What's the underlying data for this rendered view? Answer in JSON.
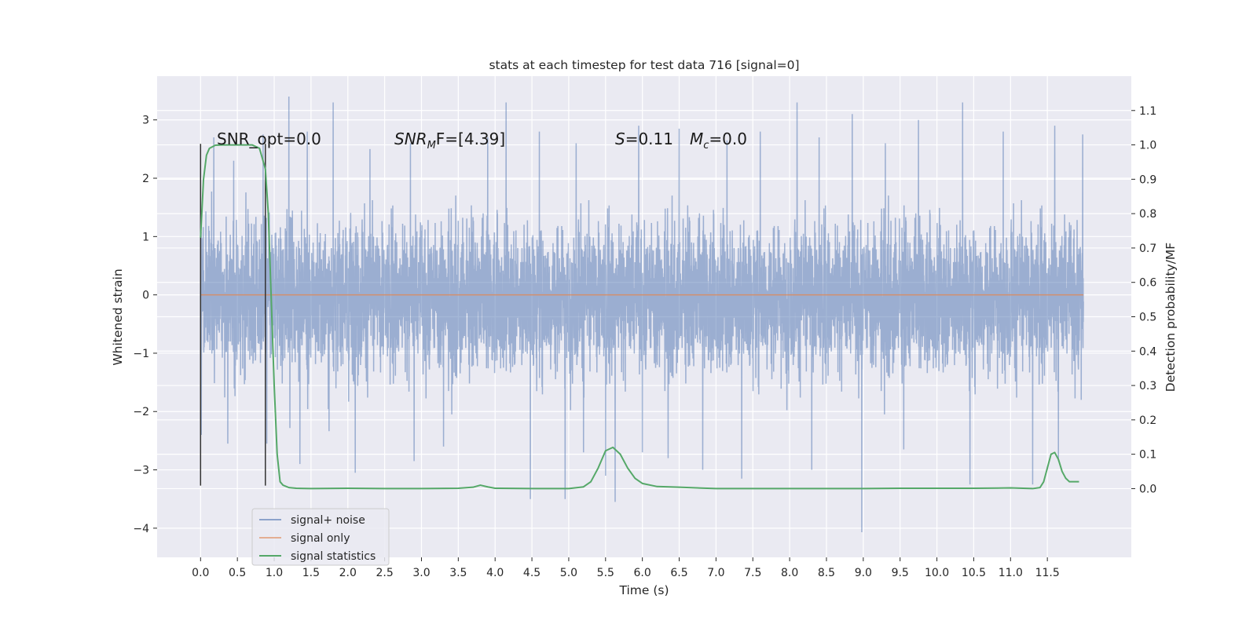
{
  "chart_data": {
    "type": "line",
    "title": "stats at each timestep for test data 716 [signal=0]",
    "xlabel": "Time (s)",
    "ylabel_left": "Whitened strain",
    "ylabel_right": "Detection probability/MF",
    "xlim": [
      -0.59,
      12.64
    ],
    "ylim_left": [
      -4.5,
      3.75
    ],
    "ylim_right": [
      -0.2,
      1.2
    ],
    "xticks": [
      0.0,
      0.5,
      1.0,
      1.5,
      2.0,
      2.5,
      3.0,
      3.5,
      4.0,
      4.5,
      5.0,
      5.5,
      6.0,
      6.5,
      7.0,
      7.5,
      8.0,
      8.5,
      9.0,
      9.5,
      10.0,
      10.5,
      11.0,
      11.5
    ],
    "xtick_labels": [
      "0.0",
      "0.5",
      "1.0",
      "1.5",
      "2.0",
      "2.5",
      "3.0",
      "3.5",
      "4.0",
      "4.5",
      "5.0",
      "5.5",
      "6.0",
      "6.5",
      "7.0",
      "7.5",
      "8.0",
      "8.5",
      "9.0",
      "9.5",
      "10.0",
      "10.5",
      "11.0",
      "11.5"
    ],
    "yticks_left": [
      -4,
      -3,
      -2,
      -1,
      0,
      1,
      2,
      3
    ],
    "ytick_labels_left": [
      "−4",
      "−3",
      "−2",
      "−1",
      "0",
      "1",
      "2",
      "3"
    ],
    "yticks_right": [
      0.0,
      0.1,
      0.2,
      0.3,
      0.4,
      0.5,
      0.6,
      0.7,
      0.8,
      0.9,
      1.0,
      1.1
    ],
    "ytick_labels_right": [
      "0.0",
      "0.1",
      "0.2",
      "0.3",
      "0.4",
      "0.5",
      "0.6",
      "0.7",
      "0.8",
      "0.9",
      "1.0",
      "1.1"
    ],
    "grid": true,
    "legend_position": "lower-left",
    "series": [
      {
        "name": "signal+ noise",
        "axis": "left",
        "color": "#4c72b0",
        "opacity": 0.5,
        "kind": "noise",
        "x_range": [
          0.0,
          11.99
        ],
        "typical_envelope": [
          -1.6,
          1.5
        ],
        "peaks": [
          {
            "x": 0.01,
            "y": 3.35
          },
          {
            "x": 0.18,
            "y": 2.7
          },
          {
            "x": 0.45,
            "y": 2.3
          },
          {
            "x": 0.85,
            "y": 2.75
          },
          {
            "x": 1.2,
            "y": 3.4
          },
          {
            "x": 1.45,
            "y": 2.8
          },
          {
            "x": 1.8,
            "y": 3.3
          },
          {
            "x": 2.3,
            "y": 2.5
          },
          {
            "x": 2.85,
            "y": 2.6
          },
          {
            "x": 3.3,
            "y": 2.4
          },
          {
            "x": 3.9,
            "y": 2.7
          },
          {
            "x": 4.15,
            "y": 3.3
          },
          {
            "x": 4.6,
            "y": 2.8
          },
          {
            "x": 5.1,
            "y": 2.6
          },
          {
            "x": 5.95,
            "y": 2.9
          },
          {
            "x": 6.5,
            "y": 2.85
          },
          {
            "x": 7.15,
            "y": 2.65
          },
          {
            "x": 7.6,
            "y": 2.8
          },
          {
            "x": 8.1,
            "y": 3.3
          },
          {
            "x": 8.4,
            "y": 2.7
          },
          {
            "x": 8.85,
            "y": 3.1
          },
          {
            "x": 9.3,
            "y": 2.6
          },
          {
            "x": 9.75,
            "y": 3.0
          },
          {
            "x": 10.35,
            "y": 3.3
          },
          {
            "x": 10.9,
            "y": 2.8
          },
          {
            "x": 11.6,
            "y": 2.9
          },
          {
            "x": 11.98,
            "y": 2.75
          }
        ],
        "troughs": [
          {
            "x": 0.01,
            "y": -2.4
          },
          {
            "x": 0.37,
            "y": -2.55
          },
          {
            "x": 0.9,
            "y": -2.55
          },
          {
            "x": 1.35,
            "y": -2.9
          },
          {
            "x": 2.1,
            "y": -3.05
          },
          {
            "x": 2.9,
            "y": -2.85
          },
          {
            "x": 3.3,
            "y": -2.6
          },
          {
            "x": 4.48,
            "y": -3.5
          },
          {
            "x": 4.95,
            "y": -3.5
          },
          {
            "x": 5.2,
            "y": -2.7
          },
          {
            "x": 5.5,
            "y": -3.1
          },
          {
            "x": 5.63,
            "y": -3.55
          },
          {
            "x": 6.0,
            "y": -2.7
          },
          {
            "x": 6.35,
            "y": -2.8
          },
          {
            "x": 6.82,
            "y": -3.0
          },
          {
            "x": 7.35,
            "y": -3.15
          },
          {
            "x": 8.3,
            "y": -3.0
          },
          {
            "x": 8.98,
            "y": -4.07
          },
          {
            "x": 9.55,
            "y": -2.65
          },
          {
            "x": 10.45,
            "y": -3.25
          },
          {
            "x": 11.3,
            "y": -3.25
          },
          {
            "x": 11.65,
            "y": -2.85
          },
          {
            "x": 11.96,
            "y": -1.8
          }
        ]
      },
      {
        "name": "signal only",
        "axis": "left",
        "color": "#dd8452",
        "opacity": 0.5,
        "x": [
          0.0,
          11.99
        ],
        "y": [
          0.0,
          0.0
        ]
      },
      {
        "name": "signal statistics",
        "axis": "right",
        "color": "#55a868",
        "x": [
          0.0,
          0.04,
          0.08,
          0.12,
          0.2,
          0.3,
          0.5,
          0.7,
          0.8,
          0.88,
          0.92,
          0.96,
          1.0,
          1.04,
          1.08,
          1.12,
          1.2,
          1.3,
          1.5,
          2.0,
          2.5,
          3.0,
          3.5,
          3.7,
          3.8,
          3.9,
          4.0,
          4.5,
          5.0,
          5.2,
          5.3,
          5.4,
          5.5,
          5.6,
          5.7,
          5.8,
          5.9,
          6.0,
          6.2,
          6.5,
          7.0,
          8.0,
          9.0,
          9.5,
          10.0,
          10.5,
          11.0,
          11.3,
          11.4,
          11.45,
          11.5,
          11.55,
          11.6,
          11.65,
          11.7,
          11.75,
          11.8,
          11.9,
          11.93
        ],
        "y": [
          0.73,
          0.9,
          0.97,
          0.99,
          0.999,
          1.0,
          1.0,
          1.0,
          0.99,
          0.93,
          0.8,
          0.55,
          0.3,
          0.1,
          0.02,
          0.01,
          0.003,
          0.001,
          0.0,
          0.001,
          0.0,
          0.0,
          0.001,
          0.004,
          0.01,
          0.005,
          0.001,
          0.0,
          0.0,
          0.005,
          0.02,
          0.06,
          0.11,
          0.12,
          0.1,
          0.06,
          0.03,
          0.015,
          0.006,
          0.004,
          0.0,
          0.0,
          0.0,
          0.001,
          0.001,
          0.001,
          0.002,
          0.0,
          0.003,
          0.02,
          0.06,
          0.1,
          0.105,
          0.085,
          0.05,
          0.03,
          0.02,
          0.02,
          0.02
        ]
      }
    ],
    "vlines": [
      {
        "x": 0.0,
        "y": [
          -3.27,
          2.59
        ],
        "color": "#333333"
      },
      {
        "x": 0.88,
        "y": [
          -3.27,
          2.59
        ],
        "color": "#333333"
      }
    ],
    "annotations": [
      {
        "text": "SNR_opt=0.0"
      },
      {
        "text": "SNR",
        "sub": "M",
        "rest": "F=[4.39]"
      },
      {
        "text": "S",
        "rest": "=0.11"
      },
      {
        "text": "M",
        "sub": "c",
        "rest": "=0.0"
      }
    ]
  }
}
